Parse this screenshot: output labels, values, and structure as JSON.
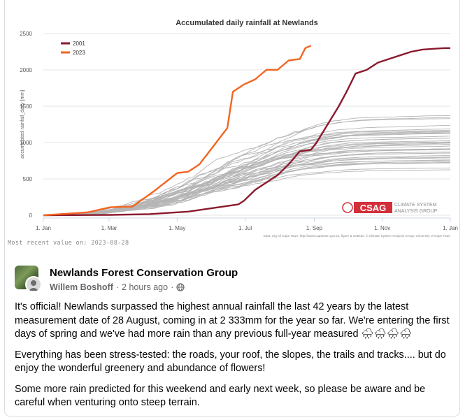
{
  "chart_data": {
    "type": "line",
    "title": "Accumulated daily rainfall at Newlands",
    "ylabel": "accumulated rainfall_daily [mm]",
    "xlabel": "",
    "ylim": [
      0,
      2500
    ],
    "yticks": [
      0,
      500,
      1000,
      1500,
      2000,
      2500
    ],
    "xticks": [
      "1. Jan",
      "1. Mar",
      "1. May",
      "1. Jul",
      "1. Sep",
      "1. Nov",
      "1. Jan"
    ],
    "x_unit": "day of year (0 = 1 Jan)",
    "legend_position": "top-left",
    "grid": "horizontal",
    "series": [
      {
        "name": "2001",
        "color": "#8b1a2e",
        "x": [
          0,
          60,
          95,
          130,
          175,
          180,
          190,
          210,
          220,
          230,
          240,
          245,
          255,
          265,
          272,
          280,
          290,
          300,
          310,
          320,
          330,
          340,
          350,
          360,
          365
        ],
        "y": [
          0,
          5,
          15,
          50,
          150,
          200,
          350,
          550,
          700,
          880,
          900,
          1000,
          1250,
          1500,
          1700,
          1950,
          2000,
          2100,
          2150,
          2200,
          2250,
          2280,
          2290,
          2300,
          2300
        ]
      },
      {
        "name": "2023",
        "color": "#f26522",
        "x": [
          0,
          20,
          40,
          60,
          80,
          100,
          120,
          130,
          140,
          150,
          160,
          165,
          170,
          180,
          190,
          200,
          210,
          220,
          230,
          235,
          240
        ],
        "y": [
          0,
          20,
          40,
          110,
          120,
          340,
          580,
          600,
          700,
          900,
          1100,
          1200,
          1700,
          1800,
          1870,
          2000,
          2000,
          2130,
          2150,
          2300,
          2333
        ]
      }
    ],
    "background_series_color": "#b5b5b5",
    "background_series_count": 40,
    "background_series_note": "grey lines for other years",
    "logo": {
      "text": "CSAG",
      "subtitle_line1": "CLIMATE SYSTEM",
      "subtitle_line2": "ANALYSIS GROUP",
      "color": "#d32f3a"
    },
    "credit": "Data: City of Cape Town, http://www.capetown.gov.za, figure & website: © Climate System Analysis Group, University of Cape Town"
  },
  "recent_value": "Most recent value on: 2023-08-28",
  "post": {
    "group_name": "Newlands Forest Conservation Group",
    "author": "Willem Boshoff",
    "time": "2 hours ago",
    "separator": "·",
    "visibility_icon": "globe-icon",
    "paragraphs": [
      "It's official! Newlands surpassed the highest annual rainfall the last 42 years by the latest measurement date of 28 August, coming in at 2 333mm for the year so far. We're entering the first days of spring and we've had more rain than any previous full-year measured 🌧🌧🌧🌧",
      "Everything has been stress-tested: the roads, your roof, the slopes, the trails and tracks.... but do enjoy the wonderful greenery and abundance of flowers!",
      "Some more rain predicted for this weekend and early next week, so please be aware and be careful when venturing onto steep terrain."
    ]
  }
}
